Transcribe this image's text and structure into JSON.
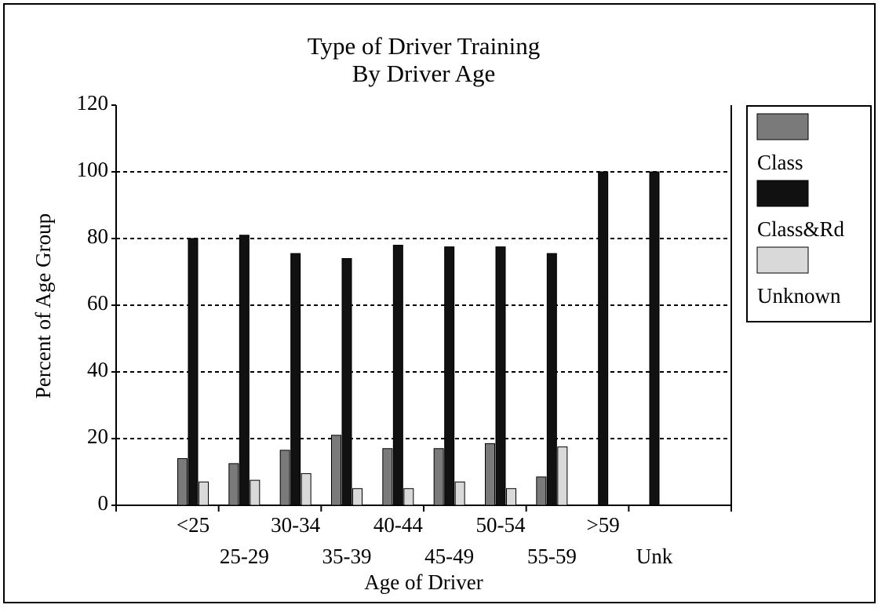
{
  "chart_data": {
    "type": "bar",
    "title": "Type of Driver Training",
    "subtitle": "By Driver Age",
    "x_label": "Age of Driver",
    "y_label": "Percent of Age Group",
    "categories": [
      "<25",
      "25-29",
      "30-34",
      "35-39",
      "40-44",
      "45-49",
      "50-54",
      "55-59",
      ">59",
      "Unk"
    ],
    "series": [
      {
        "name": "Class",
        "color": "#7a7a7a",
        "values": [
          14,
          12.5,
          16.5,
          21,
          17,
          17,
          18.5,
          8.5,
          0,
          0
        ]
      },
      {
        "name": "Class&Rd",
        "color": "#111111",
        "values": [
          80,
          81,
          75.5,
          74,
          78,
          77.5,
          77.5,
          75.5,
          100,
          100
        ]
      },
      {
        "name": "Unknown",
        "color": "#d9d9d9",
        "values": [
          7,
          7.5,
          9.5,
          5,
          5,
          7,
          5,
          17.5,
          0,
          0
        ]
      }
    ],
    "ylim": [
      0,
      120
    ],
    "yticks": [
      0,
      20,
      40,
      60,
      80,
      100,
      120
    ],
    "grid": true,
    "legend": "right"
  }
}
